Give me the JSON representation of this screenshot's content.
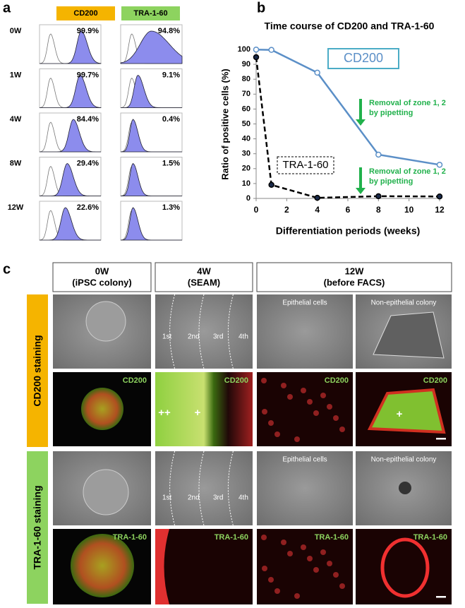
{
  "panel_a": {
    "label": "a",
    "markers": [
      "CD200",
      "TRA-1-60"
    ],
    "rows": [
      {
        "time": "0W",
        "cd200": "99.9%",
        "tra": "94.8%"
      },
      {
        "time": "1W",
        "cd200": "99.7%",
        "tra": "9.1%"
      },
      {
        "time": "4W",
        "cd200": "84.4%",
        "tra": "0.4%"
      },
      {
        "time": "8W",
        "cd200": "29.4%",
        "tra": "1.5%"
      },
      {
        "time": "12W",
        "cd200": "22.6%",
        "tra": "1.3%"
      }
    ]
  },
  "chart_data": {
    "type": "line",
    "panel_label": "b",
    "title": "Time course of CD200 and TRA-1-60",
    "x_label": "Differentiation periods (weeks)",
    "y_label": "Ratio of positive cells (%)",
    "x": [
      0,
      1,
      4,
      8,
      12
    ],
    "xlim": [
      0,
      12
    ],
    "xticks": [
      0,
      2,
      4,
      6,
      8,
      10,
      12
    ],
    "ylim": [
      0,
      100
    ],
    "yticks": [
      0,
      10,
      20,
      30,
      40,
      50,
      60,
      70,
      80,
      90,
      100
    ],
    "series": [
      {
        "name": "CD200",
        "color": "#5b8fc7",
        "values": [
          99.9,
          99.7,
          84.4,
          29.4,
          22.6
        ]
      },
      {
        "name": "TRA-1-60",
        "color": "#000000",
        "values": [
          94.8,
          9.1,
          0.4,
          1.5,
          1.3
        ]
      }
    ],
    "annotations": [
      [
        "Removal of zone 1, 2",
        "by pipetting"
      ],
      [
        "Removal of zone 1, 2",
        "by pipetting"
      ]
    ]
  },
  "panel_c": {
    "label": "c",
    "columns": [
      [
        "0W",
        "(iPSC colony)"
      ],
      [
        "4W",
        "(SEAM)"
      ],
      [
        "12W",
        "(before FACS)"
      ]
    ],
    "row_groups": [
      "CD200 staining",
      "TRA-1-60 staining"
    ],
    "subtitles": [
      "Epithelial cells",
      "Non-epithelial colony"
    ],
    "stains": [
      "CD200",
      "TRA-1-60"
    ],
    "zones": [
      "1st",
      "2nd",
      "3rd",
      "4th"
    ],
    "marks": [
      "++",
      "+",
      "+"
    ]
  }
}
